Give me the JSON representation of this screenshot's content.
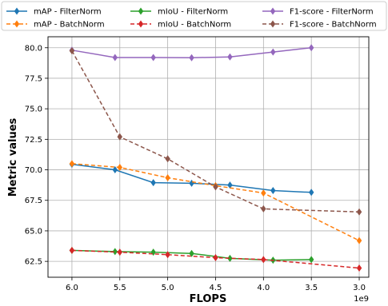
{
  "chart_data": {
    "type": "line",
    "xlabel": "FLOPS",
    "ylabel": "Metric values",
    "x_offset_label": "1e9",
    "xlim": [
      6.25,
      2.9
    ],
    "ylim": [
      61.2,
      80.9
    ],
    "x_ticks": [
      6.0,
      5.5,
      5.0,
      4.5,
      4.0,
      3.5,
      3.0
    ],
    "x_tick_labels": [
      "6.0",
      "5.5",
      "5.0",
      "4.5",
      "4.0",
      "3.5",
      "3.0"
    ],
    "y_ticks": [
      62.5,
      65.0,
      67.5,
      70.0,
      72.5,
      75.0,
      77.5,
      80.0
    ],
    "y_tick_labels": [
      "62.5",
      "65.0",
      "67.5",
      "70.0",
      "72.5",
      "75.0",
      "77.5",
      "80.0"
    ],
    "grid": true,
    "legend_position": "top",
    "series": [
      {
        "name": "mAP - FilterNorm",
        "color": "#1f77b4",
        "dash": "solid",
        "x": [
          6.0,
          5.55,
          5.15,
          4.75,
          4.35,
          3.9,
          3.5
        ],
        "y": [
          70.45,
          70.0,
          68.95,
          68.9,
          68.75,
          68.3,
          68.15
        ]
      },
      {
        "name": "mAP - BatchNorm",
        "color": "#ff7f0e",
        "dash": "dashed",
        "x": [
          6.0,
          5.5,
          5.0,
          4.5,
          4.0,
          3.0
        ],
        "y": [
          70.5,
          70.2,
          69.35,
          68.7,
          68.1,
          64.2
        ]
      },
      {
        "name": "mIoU - FilterNorm",
        "color": "#2ca02c",
        "dash": "solid",
        "x": [
          6.0,
          5.55,
          5.15,
          4.75,
          4.35,
          3.9,
          3.5
        ],
        "y": [
          63.4,
          63.3,
          63.25,
          63.15,
          62.75,
          62.6,
          62.65
        ]
      },
      {
        "name": "mIoU - BatchNorm",
        "color": "#d62728",
        "dash": "dashed",
        "x": [
          6.0,
          5.5,
          5.0,
          4.5,
          4.0,
          3.0
        ],
        "y": [
          63.4,
          63.25,
          63.05,
          62.8,
          62.65,
          61.95
        ]
      },
      {
        "name": "F1-score - FilterNorm",
        "color": "#9467bd",
        "dash": "solid",
        "x": [
          6.0,
          5.55,
          5.15,
          4.75,
          4.35,
          3.9,
          3.5
        ],
        "y": [
          79.8,
          79.2,
          79.2,
          79.18,
          79.25,
          79.65,
          80.0
        ]
      },
      {
        "name": "F1-score - BatchNorm",
        "color": "#8c564b",
        "dash": "dashed",
        "x": [
          6.0,
          5.5,
          5.0,
          4.5,
          4.0,
          3.0
        ],
        "y": [
          79.75,
          72.7,
          70.9,
          68.6,
          66.8,
          66.55
        ]
      }
    ]
  }
}
